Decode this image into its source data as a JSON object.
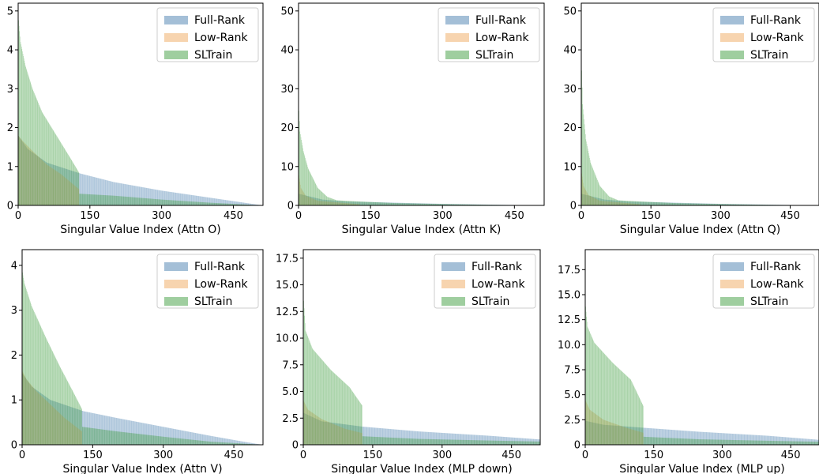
{
  "colors": {
    "full_rank": "#4a7fb0",
    "low_rank": "#f0a95f",
    "sltrain": "#3f9e3f"
  },
  "legend_labels": [
    "Full-Rank",
    "Low-Rank",
    "SLTrain"
  ],
  "chart_data": [
    {
      "type": "bar",
      "xlabel": "Singular Value Index (Attn O)",
      "xlim": [
        0,
        512
      ],
      "ylim": [
        0,
        5.2
      ],
      "xticks": [
        0,
        150,
        300,
        450
      ],
      "yticks": [
        0,
        1,
        2,
        3,
        4,
        5
      ],
      "ytick_labels": [
        "0",
        "1",
        "2",
        "3",
        "4",
        "5"
      ],
      "legend": "upper right",
      "series": [
        {
          "name": "Full-Rank",
          "n": 512,
          "values_at": {
            "0": 1.8,
            "20": 1.45,
            "60": 1.1,
            "130": 0.82,
            "200": 0.6,
            "300": 0.38,
            "400": 0.2,
            "450": 0.11,
            "511": 0.0
          }
        },
        {
          "name": "Low-Rank",
          "n": 128,
          "values_at": {
            "0": 1.8,
            "10": 1.65,
            "30": 1.4,
            "60": 1.05,
            "90": 0.8,
            "127": 0.42
          }
        },
        {
          "name": "SLTrain",
          "n": 512,
          "values_at": {
            "0": 4.9,
            "5": 4.2,
            "15": 3.6,
            "30": 3.0,
            "50": 2.4,
            "80": 1.8,
            "110": 1.2,
            "127": 0.85,
            "128": 0.3,
            "200": 0.25,
            "300": 0.15,
            "400": 0.07,
            "511": 0.0
          }
        }
      ]
    },
    {
      "type": "bar",
      "xlabel": "Singular Value Index (Attn K)",
      "xlim": [
        0,
        512
      ],
      "ylim": [
        0,
        52
      ],
      "xticks": [
        0,
        150,
        300,
        450
      ],
      "yticks": [
        0,
        10,
        20,
        30,
        40,
        50
      ],
      "ytick_labels": [
        "0",
        "10",
        "20",
        "30",
        "40",
        "50"
      ],
      "legend": "upper right",
      "series": [
        {
          "name": "Full-Rank",
          "n": 512,
          "values_at": {
            "0": 3.0,
            "50": 1.5,
            "100": 1.0,
            "200": 0.7,
            "300": 0.4,
            "400": 0.2,
            "511": 0.0
          }
        },
        {
          "name": "Low-Rank",
          "n": 128,
          "values_at": {
            "0": 8.5,
            "5": 4.5,
            "15": 2.5,
            "40": 1.2,
            "127": 0.3
          }
        },
        {
          "name": "SLTrain",
          "n": 512,
          "values_at": {
            "0": 27,
            "3": 19,
            "10": 14,
            "20": 9.5,
            "40": 4.5,
            "60": 2.2,
            "80": 1.3,
            "128": 1.0,
            "200": 0.6,
            "300": 0.35,
            "400": 0.15,
            "511": 0.0
          }
        }
      ]
    },
    {
      "type": "bar",
      "xlabel": "Singular Value Index (Attn Q)",
      "xlim": [
        0,
        512
      ],
      "ylim": [
        0,
        52
      ],
      "xticks": [
        0,
        150,
        300,
        450
      ],
      "yticks": [
        0,
        10,
        20,
        30,
        40,
        50
      ],
      "ytick_labels": [
        "0",
        "10",
        "20",
        "30",
        "40",
        "50"
      ],
      "legend": "upper right",
      "series": [
        {
          "name": "Full-Rank",
          "n": 512,
          "values_at": {
            "0": 3.0,
            "50": 1.5,
            "100": 1.0,
            "200": 0.7,
            "300": 0.4,
            "400": 0.2,
            "511": 0.0
          }
        },
        {
          "name": "Low-Rank",
          "n": 128,
          "values_at": {
            "0": 9.0,
            "5": 5.0,
            "15": 2.7,
            "40": 1.2,
            "127": 0.3
          }
        },
        {
          "name": "SLTrain",
          "n": 512,
          "values_at": {
            "0": 39,
            "3": 26,
            "10": 17,
            "20": 11,
            "40": 5.0,
            "60": 2.3,
            "80": 1.3,
            "128": 1.0,
            "200": 0.6,
            "300": 0.35,
            "400": 0.15,
            "511": 0.0
          }
        }
      ]
    },
    {
      "type": "bar",
      "xlabel": "Singular Value Index (Attn V)",
      "xlim": [
        0,
        512
      ],
      "ylim": [
        0,
        4.35
      ],
      "xticks": [
        0,
        150,
        300,
        450
      ],
      "yticks": [
        0,
        1,
        2,
        3,
        4
      ],
      "ytick_labels": [
        "0",
        "1",
        "2",
        "3",
        "4"
      ],
      "legend": "upper right",
      "series": [
        {
          "name": "Full-Rank",
          "n": 512,
          "values_at": {
            "0": 1.6,
            "20": 1.3,
            "60": 1.0,
            "130": 0.75,
            "200": 0.6,
            "300": 0.4,
            "400": 0.2,
            "470": 0.07,
            "511": 0.0
          }
        },
        {
          "name": "Low-Rank",
          "n": 128,
          "values_at": {
            "0": 1.65,
            "10": 1.45,
            "30": 1.2,
            "60": 0.9,
            "90": 0.6,
            "127": 0.3
          }
        },
        {
          "name": "SLTrain",
          "n": 512,
          "values_at": {
            "0": 3.9,
            "5": 3.6,
            "20": 3.1,
            "50": 2.4,
            "80": 1.75,
            "110": 1.15,
            "127": 0.8,
            "128": 0.4,
            "200": 0.3,
            "300": 0.18,
            "400": 0.07,
            "511": 0.0
          }
        }
      ]
    },
    {
      "type": "bar",
      "xlabel": "Singular Value Index (MLP down)",
      "xlim": [
        0,
        512
      ],
      "ylim": [
        0,
        18.3
      ],
      "xticks": [
        0,
        150,
        300,
        450
      ],
      "yticks": [
        0,
        2.5,
        5,
        7.5,
        10,
        12.5,
        15,
        17.5
      ],
      "ytick_labels": [
        "0",
        "2.5",
        "5.0",
        "7.5",
        "10.0",
        "12.5",
        "15.0",
        "17.5"
      ],
      "legend": "upper right",
      "series": [
        {
          "name": "Full-Rank",
          "n": 512,
          "values_at": {
            "0": 3.0,
            "40": 2.2,
            "128": 1.7,
            "250": 1.25,
            "400": 0.85,
            "511": 0.5
          }
        },
        {
          "name": "Low-Rank",
          "n": 128,
          "values_at": {
            "0": 4.2,
            "10": 3.3,
            "40": 2.4,
            "90": 1.5,
            "127": 1.1
          }
        },
        {
          "name": "SLTrain",
          "n": 512,
          "values_at": {
            "0": 14.2,
            "5": 10.7,
            "20": 9.0,
            "60": 7.0,
            "100": 5.4,
            "127": 3.7,
            "128": 0.8,
            "250": 0.55,
            "400": 0.4,
            "511": 0.3
          }
        }
      ]
    },
    {
      "type": "bar",
      "xlabel": "Singular Value Index (MLP up)",
      "xlim": [
        0,
        512
      ],
      "ylim": [
        0,
        19.5
      ],
      "xticks": [
        0,
        150,
        300,
        450
      ],
      "yticks": [
        0,
        2.5,
        5,
        7.5,
        10,
        12.5,
        15,
        17.5
      ],
      "ytick_labels": [
        "0",
        "2.5",
        "5.0",
        "7.5",
        "10.0",
        "12.5",
        "15.0",
        "17.5"
      ],
      "legend": "upper right",
      "series": [
        {
          "name": "Full-Rank",
          "n": 512,
          "values_at": {
            "0": 2.4,
            "40": 2.0,
            "128": 1.7,
            "250": 1.3,
            "400": 0.9,
            "511": 0.5
          }
        },
        {
          "name": "Low-Rank",
          "n": 128,
          "values_at": {
            "0": 4.5,
            "10": 3.5,
            "40": 2.5,
            "90": 1.7,
            "127": 1.2
          }
        },
        {
          "name": "SLTrain",
          "n": 512,
          "values_at": {
            "0": 14.3,
            "5": 11.8,
            "20": 10.2,
            "60": 8.2,
            "100": 6.5,
            "127": 3.9,
            "128": 0.8,
            "250": 0.55,
            "400": 0.4,
            "511": 0.3
          }
        }
      ]
    }
  ]
}
